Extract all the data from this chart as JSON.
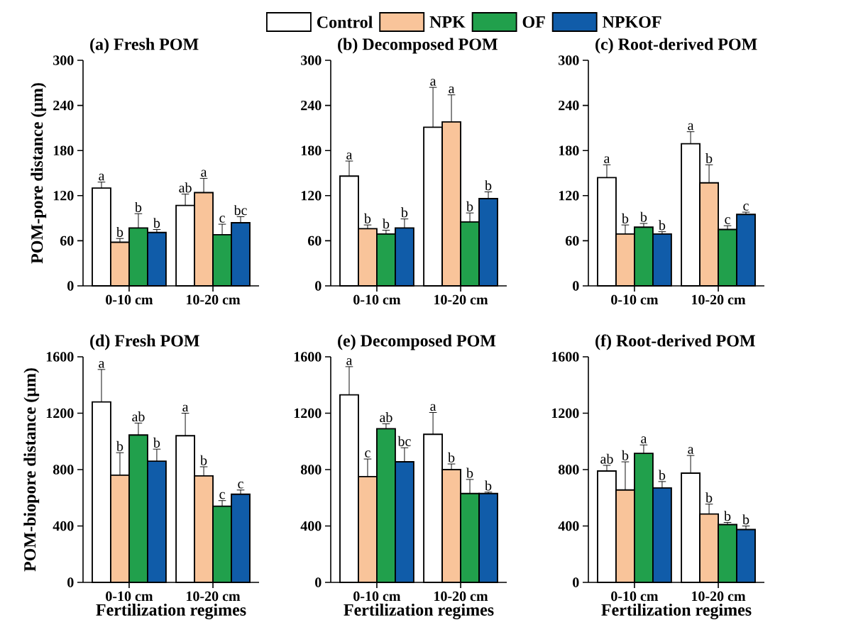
{
  "chart_data": [
    {
      "type": "bar",
      "title": "(a) Fresh POM",
      "ylabel": "POM-pore distance (μm)",
      "categories": [
        "0-10 cm",
        "10-20 cm"
      ],
      "ylim": [
        0,
        300
      ],
      "yticks": [
        0,
        60,
        120,
        180,
        240,
        300
      ],
      "legend": "top",
      "series": [
        {
          "name": "Control",
          "color": "#ffffff",
          "values": [
            130,
            107
          ],
          "errors": [
            [
              130,
              138
            ],
            [
              107,
              122
            ]
          ],
          "value_labels": [
            "a",
            "ab"
          ]
        },
        {
          "name": "NPK",
          "color": "#f9c49a",
          "values": [
            58,
            124
          ],
          "errors": [
            [
              58,
              63
            ],
            [
              124,
              143
            ]
          ],
          "value_labels": [
            "b",
            "a"
          ]
        },
        {
          "name": "OF",
          "color": "#21a04c",
          "values": [
            77,
            68
          ],
          "errors": [
            [
              77,
              96
            ],
            [
              68,
              82
            ]
          ],
          "value_labels": [
            "b",
            "c"
          ]
        },
        {
          "name": "NPKOF",
          "color": "#105ca9",
          "values": [
            71,
            84
          ],
          "errors": [
            [
              71,
              75
            ],
            [
              84,
              92
            ]
          ],
          "value_labels": [
            "b",
            "bc"
          ]
        }
      ]
    },
    {
      "type": "bar",
      "title": "(b) Decomposed POM",
      "categories": [
        "0-10 cm",
        "10-20 cm"
      ],
      "ylim": [
        0,
        300
      ],
      "yticks": [
        0,
        60,
        120,
        180,
        240,
        300
      ],
      "series": [
        {
          "color": "#ffffff",
          "values": [
            146,
            211
          ],
          "errors": [
            [
              146,
              166
            ],
            [
              211,
              264
            ]
          ],
          "value_labels": [
            "a",
            "a"
          ]
        },
        {
          "color": "#f9c49a",
          "values": [
            76,
            218
          ],
          "errors": [
            [
              76,
              81
            ],
            [
              218,
              254
            ]
          ],
          "value_labels": [
            "b",
            "a"
          ]
        },
        {
          "color": "#21a04c",
          "values": [
            69,
            85
          ],
          "errors": [
            [
              69,
              74
            ],
            [
              85,
              97
            ]
          ],
          "value_labels": [
            "b",
            "b"
          ]
        },
        {
          "color": "#105ca9",
          "values": [
            77,
            116
          ],
          "errors": [
            [
              77,
              89
            ],
            [
              116,
              125
            ]
          ],
          "value_labels": [
            "b",
            "b"
          ]
        }
      ]
    },
    {
      "type": "bar",
      "title": "(c) Root-derived POM",
      "categories": [
        "0-10 cm",
        "10-20 cm"
      ],
      "ylim": [
        0,
        300
      ],
      "yticks": [
        0,
        60,
        120,
        180,
        240,
        300
      ],
      "series": [
        {
          "color": "#ffffff",
          "values": [
            144,
            189
          ],
          "errors": [
            [
              144,
              161
            ],
            [
              189,
              205
            ]
          ],
          "value_labels": [
            "a",
            "a"
          ]
        },
        {
          "color": "#f9c49a",
          "values": [
            69,
            137
          ],
          "errors": [
            [
              69,
              81
            ],
            [
              137,
              161
            ]
          ],
          "value_labels": [
            "b",
            "b"
          ]
        },
        {
          "color": "#21a04c",
          "values": [
            78,
            75
          ],
          "errors": [
            [
              78,
              83
            ],
            [
              75,
              80
            ]
          ],
          "value_labels": [
            "b",
            "c"
          ]
        },
        {
          "color": "#105ca9",
          "values": [
            69,
            95
          ],
          "errors": [
            [
              69,
              72
            ],
            [
              95,
              98
            ]
          ],
          "value_labels": [
            "b",
            "c"
          ]
        }
      ]
    },
    {
      "type": "bar",
      "title": "(d) Fresh POM",
      "ylabel": "POM-biopore distance (μm)",
      "xlabel": "Fertilization regimes",
      "categories": [
        "0-10 cm",
        "10-20 cm"
      ],
      "ylim": [
        0,
        1600
      ],
      "yticks": [
        0,
        400,
        800,
        1200,
        1600
      ],
      "series": [
        {
          "color": "#ffffff",
          "values": [
            1280,
            1040
          ],
          "errors": [
            [
              1280,
              1510
            ],
            [
              1040,
              1200
            ]
          ],
          "value_labels": [
            "a",
            "a"
          ]
        },
        {
          "color": "#f9c49a",
          "values": [
            760,
            755
          ],
          "errors": [
            [
              760,
              920
            ],
            [
              755,
              820
            ]
          ],
          "value_labels": [
            "b",
            "b"
          ]
        },
        {
          "color": "#21a04c",
          "values": [
            1045,
            540
          ],
          "errors": [
            [
              1045,
              1130
            ],
            [
              540,
              580
            ]
          ],
          "value_labels": [
            "ab",
            "c"
          ]
        },
        {
          "color": "#105ca9",
          "values": [
            860,
            625
          ],
          "errors": [
            [
              860,
              945
            ],
            [
              625,
              655
            ]
          ],
          "value_labels": [
            "b",
            "c"
          ]
        }
      ]
    },
    {
      "type": "bar",
      "title": "(e) Decomposed POM",
      "xlabel": "Fertilization regimes",
      "categories": [
        "0-10 cm",
        "10-20 cm"
      ],
      "ylim": [
        0,
        1600
      ],
      "yticks": [
        0,
        400,
        800,
        1200,
        1600
      ],
      "series": [
        {
          "color": "#ffffff",
          "values": [
            1330,
            1050
          ],
          "errors": [
            [
              1330,
              1530
            ],
            [
              1050,
              1205
            ]
          ],
          "value_labels": [
            "a",
            "a"
          ]
        },
        {
          "color": "#f9c49a",
          "values": [
            750,
            800
          ],
          "errors": [
            [
              750,
              875
            ],
            [
              800,
              840
            ]
          ],
          "value_labels": [
            "c",
            "b"
          ]
        },
        {
          "color": "#21a04c",
          "values": [
            1090,
            630
          ],
          "errors": [
            [
              1090,
              1125
            ],
            [
              630,
              730
            ]
          ],
          "value_labels": [
            "ab",
            "b"
          ]
        },
        {
          "color": "#105ca9",
          "values": [
            855,
            630
          ],
          "errors": [
            [
              855,
              955
            ],
            [
              630,
              640
            ]
          ],
          "value_labels": [
            "bc",
            "b"
          ]
        }
      ]
    },
    {
      "type": "bar",
      "title": "(f) Root-derived POM",
      "xlabel": "Fertilization regimes",
      "categories": [
        "0-10 cm",
        "10-20 cm"
      ],
      "ylim": [
        0,
        1600
      ],
      "yticks": [
        0,
        400,
        800,
        1200,
        1600
      ],
      "series": [
        {
          "color": "#ffffff",
          "values": [
            790,
            775
          ],
          "errors": [
            [
              790,
              830
            ],
            [
              775,
              900
            ]
          ],
          "value_labels": [
            "ab",
            "a"
          ]
        },
        {
          "color": "#f9c49a",
          "values": [
            655,
            485
          ],
          "errors": [
            [
              655,
              855
            ],
            [
              485,
              555
            ]
          ],
          "value_labels": [
            "b",
            "b"
          ]
        },
        {
          "color": "#21a04c",
          "values": [
            915,
            410
          ],
          "errors": [
            [
              915,
              975
            ],
            [
              410,
              425
            ]
          ],
          "value_labels": [
            "a",
            "b"
          ]
        },
        {
          "color": "#105ca9",
          "values": [
            670,
            375
          ],
          "errors": [
            [
              670,
              715
            ],
            [
              375,
              400
            ]
          ],
          "value_labels": [
            "b",
            "b"
          ]
        }
      ]
    }
  ]
}
